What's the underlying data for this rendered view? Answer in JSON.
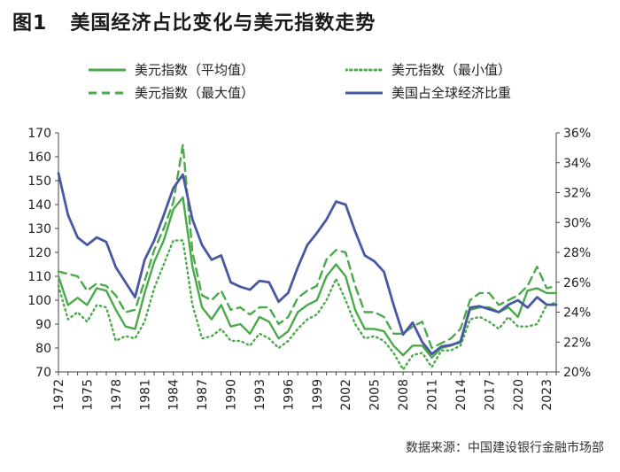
{
  "figure": {
    "label": "图1",
    "title": "美国经济占比变化与美元指数走势"
  },
  "source": "数据来源：中国建设银行金融市场部",
  "chart_data": {
    "type": "line",
    "x": [
      1972,
      1973,
      1974,
      1975,
      1976,
      1977,
      1978,
      1979,
      1980,
      1981,
      1982,
      1983,
      1984,
      1985,
      1986,
      1987,
      1988,
      1989,
      1990,
      1991,
      1992,
      1993,
      1994,
      1995,
      1996,
      1997,
      1998,
      1999,
      2000,
      2001,
      2002,
      2003,
      2004,
      2005,
      2006,
      2007,
      2008,
      2009,
      2010,
      2011,
      2012,
      2013,
      2014,
      2015,
      2016,
      2017,
      2018,
      2019,
      2020,
      2021,
      2022,
      2023,
      2024
    ],
    "x_tick_labels": [
      "1972",
      "1975",
      "1978",
      "1981",
      "1984",
      "1987",
      "1990",
      "1993",
      "1996",
      "1999",
      "2002",
      "2005",
      "2008",
      "2011",
      "2014",
      "2017",
      "2020",
      "2023"
    ],
    "y_left": {
      "ylim": [
        70,
        170
      ],
      "ticks": [
        "70",
        "80",
        "90",
        "100",
        "110",
        "120",
        "130",
        "140",
        "150",
        "160",
        "170"
      ]
    },
    "y_right": {
      "ylim": [
        20,
        36
      ],
      "ticks": [
        "20%",
        "22%",
        "24%",
        "26%",
        "28%",
        "30%",
        "32%",
        "34%",
        "36%"
      ]
    },
    "grid": false,
    "legend_position": "top",
    "series": [
      {
        "name": "美元指数（平均值）",
        "axis": "left",
        "style": "solid",
        "color": "#4aaa4a",
        "values": [
          110,
          98,
          101,
          98,
          105,
          104,
          96,
          89,
          88,
          103,
          116,
          125,
          138,
          143,
          114,
          97,
          92,
          98,
          89,
          90,
          86,
          93,
          91,
          84,
          87,
          95,
          98,
          100,
          110,
          115,
          110,
          96,
          88,
          88,
          87,
          81,
          77,
          81,
          81,
          76,
          80,
          81,
          83,
          96,
          97,
          97,
          95,
          97,
          93,
          104,
          105,
          103,
          103
        ]
      },
      {
        "name": "美元指数（最小值）",
        "axis": "left",
        "style": "dotted",
        "color": "#4aaa4a",
        "values": [
          106,
          92,
          95,
          91,
          98,
          97,
          83,
          85,
          84,
          91,
          105,
          115,
          125,
          125,
          98,
          84,
          85,
          88,
          83,
          83,
          81,
          86,
          84,
          80,
          83,
          88,
          92,
          94,
          100,
          109,
          100,
          90,
          84,
          85,
          83,
          78,
          71,
          77,
          78,
          72,
          79,
          79,
          81,
          92,
          93,
          91,
          88,
          93,
          89,
          89,
          90,
          98,
          99
        ]
      },
      {
        "name": "美元指数（最大值）",
        "axis": "left",
        "style": "dashed",
        "color": "#4aaa4a",
        "values": [
          112,
          111,
          110,
          104,
          107,
          106,
          102,
          95,
          96,
          108,
          121,
          130,
          141,
          165,
          120,
          102,
          100,
          104,
          96,
          97,
          94,
          97,
          97,
          90,
          93,
          101,
          104,
          106,
          117,
          121,
          120,
          106,
          95,
          95,
          93,
          86,
          86,
          89,
          91,
          80,
          82,
          84,
          88,
          100,
          103,
          103,
          98,
          100,
          102,
          106,
          114,
          105,
          106
        ]
      },
      {
        "name": "美国占全球经济比重",
        "axis": "right",
        "unit": "%",
        "color": "#4a58a4",
        "values": [
          33.3,
          30.5,
          29.0,
          28.5,
          29.0,
          28.7,
          27.0,
          26.0,
          25.0,
          27.5,
          28.8,
          30.5,
          32.3,
          33.2,
          30.2,
          28.5,
          27.5,
          27.8,
          26.0,
          25.7,
          25.5,
          26.1,
          26.0,
          24.7,
          25.3,
          27.0,
          28.5,
          29.3,
          30.2,
          31.4,
          31.2,
          29.4,
          27.8,
          27.4,
          26.7,
          24.5,
          22.5,
          23.3,
          22.0,
          21.2,
          21.7,
          21.8,
          22.0,
          24.3,
          24.4,
          24.2,
          24.0,
          24.5,
          24.8,
          24.3,
          25.0,
          24.5,
          24.5
        ]
      }
    ]
  }
}
